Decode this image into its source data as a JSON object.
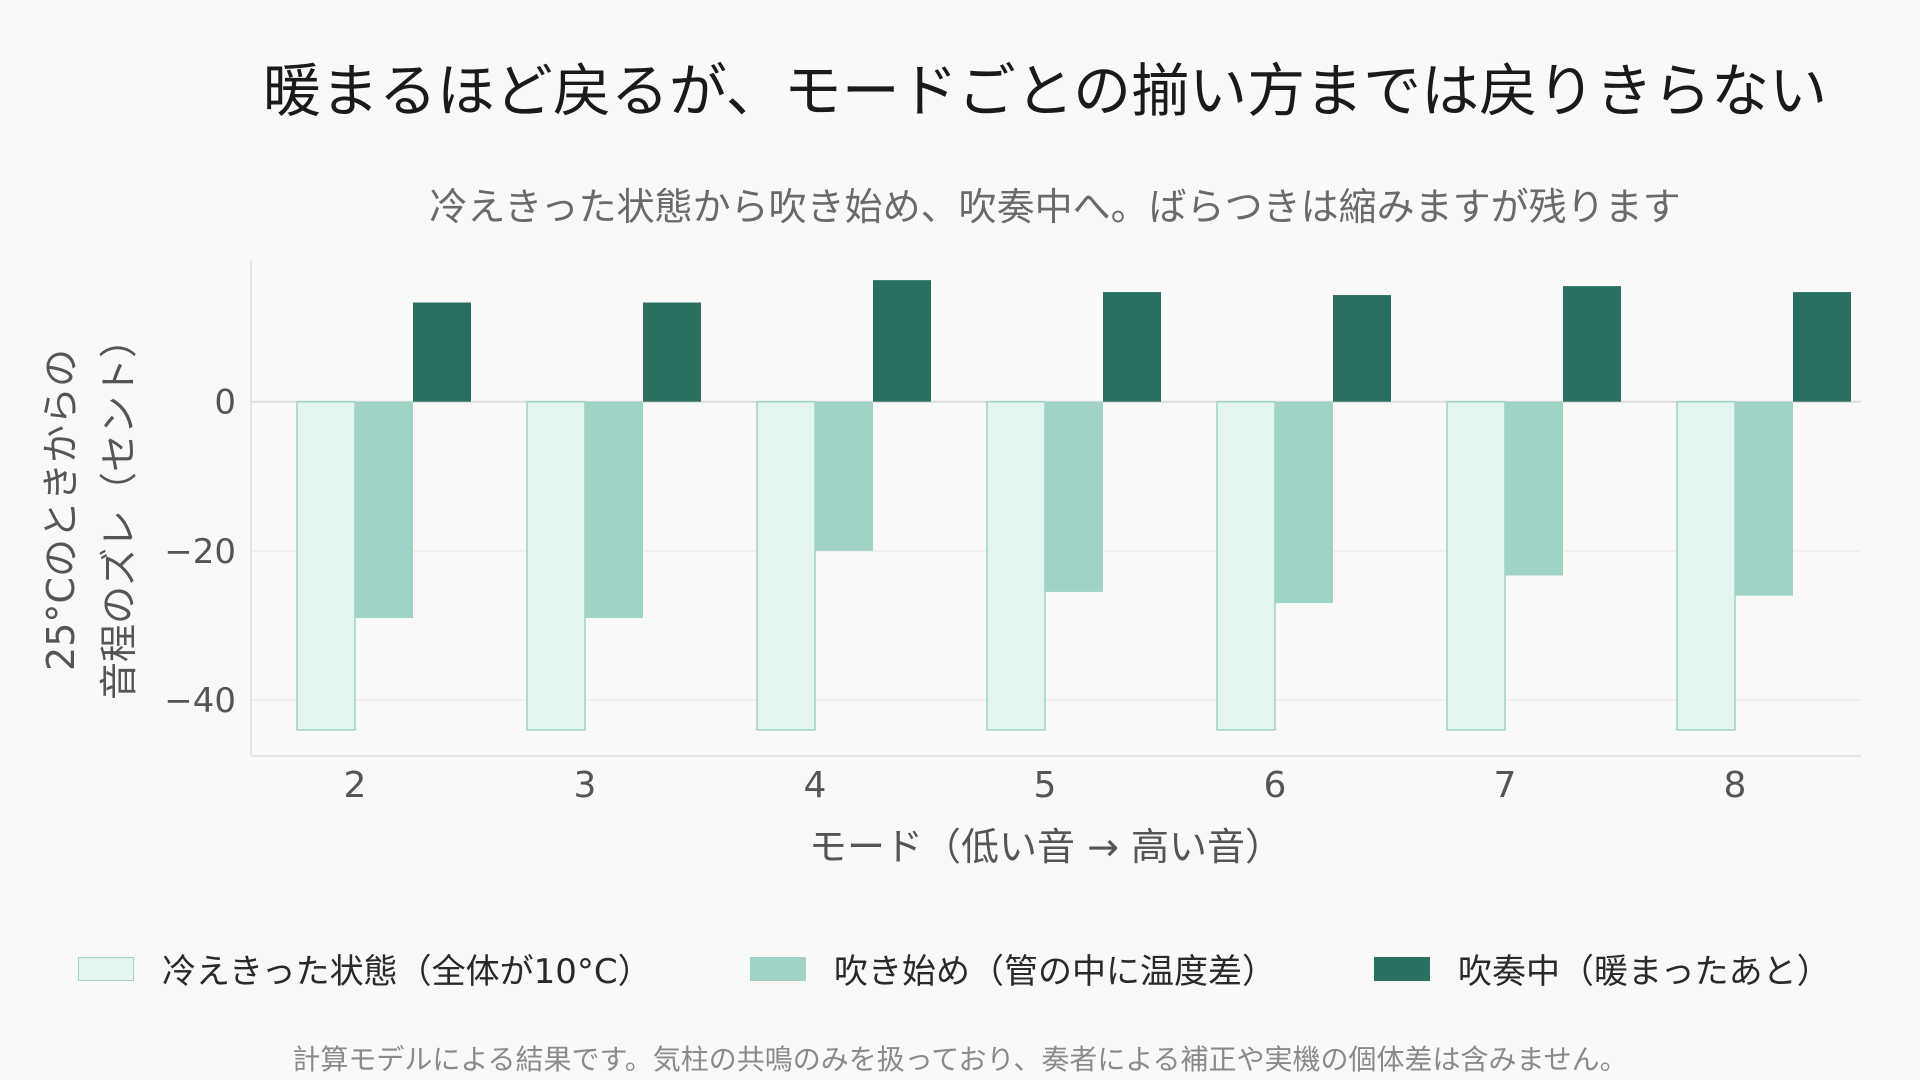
{
  "chart_data": {
    "type": "bar",
    "title": "暖まるほど戻るが、モードごとの揃い方までは戻りきらない",
    "subtitle": "冷えきった状態から吹き始め、吹奏中へ。ばらつきは縮みますが残ります",
    "xlabel": "モード（低い音 → 高い音）",
    "ylabel_lines": [
      "25°Cのときからの",
      "音程のズレ（セント）"
    ],
    "categories": [
      "2",
      "3",
      "4",
      "5",
      "6",
      "7",
      "8"
    ],
    "series": [
      {
        "name": "冷えきった状態（全体が10°C）",
        "values": [
          -44,
          -44,
          -44,
          -44,
          -44,
          -44,
          -44
        ]
      },
      {
        "name": "吹き始め（管の中に温度差）",
        "values": [
          -29,
          -29,
          -20,
          -25.5,
          -27,
          -23.3,
          -26
        ]
      },
      {
        "name": "吹奏中（暖まったあと）",
        "values": [
          13.3,
          13.3,
          16.3,
          14.7,
          14.3,
          15.5,
          14.7
        ]
      }
    ],
    "ylim": [
      -47.5,
      19
    ],
    "yticks": [
      0,
      -20,
      -40
    ],
    "ytick_labels": [
      "0",
      "−20",
      "−40"
    ],
    "grid": true,
    "legend_position": "bottom",
    "colors": {
      "cold_fill": "#e3f4f1",
      "cold_stroke": "#9fd3c6",
      "start_fill": "#9fd3c6",
      "playing_fill": "#2a7060",
      "axis": "#dddddd",
      "grid": "#ececec",
      "tick_text": "#555555"
    }
  },
  "footnote": "計算モデルによる結果です。気柱の共鳴のみを扱っており、奏者による補正や実機の個体差は含みません。"
}
